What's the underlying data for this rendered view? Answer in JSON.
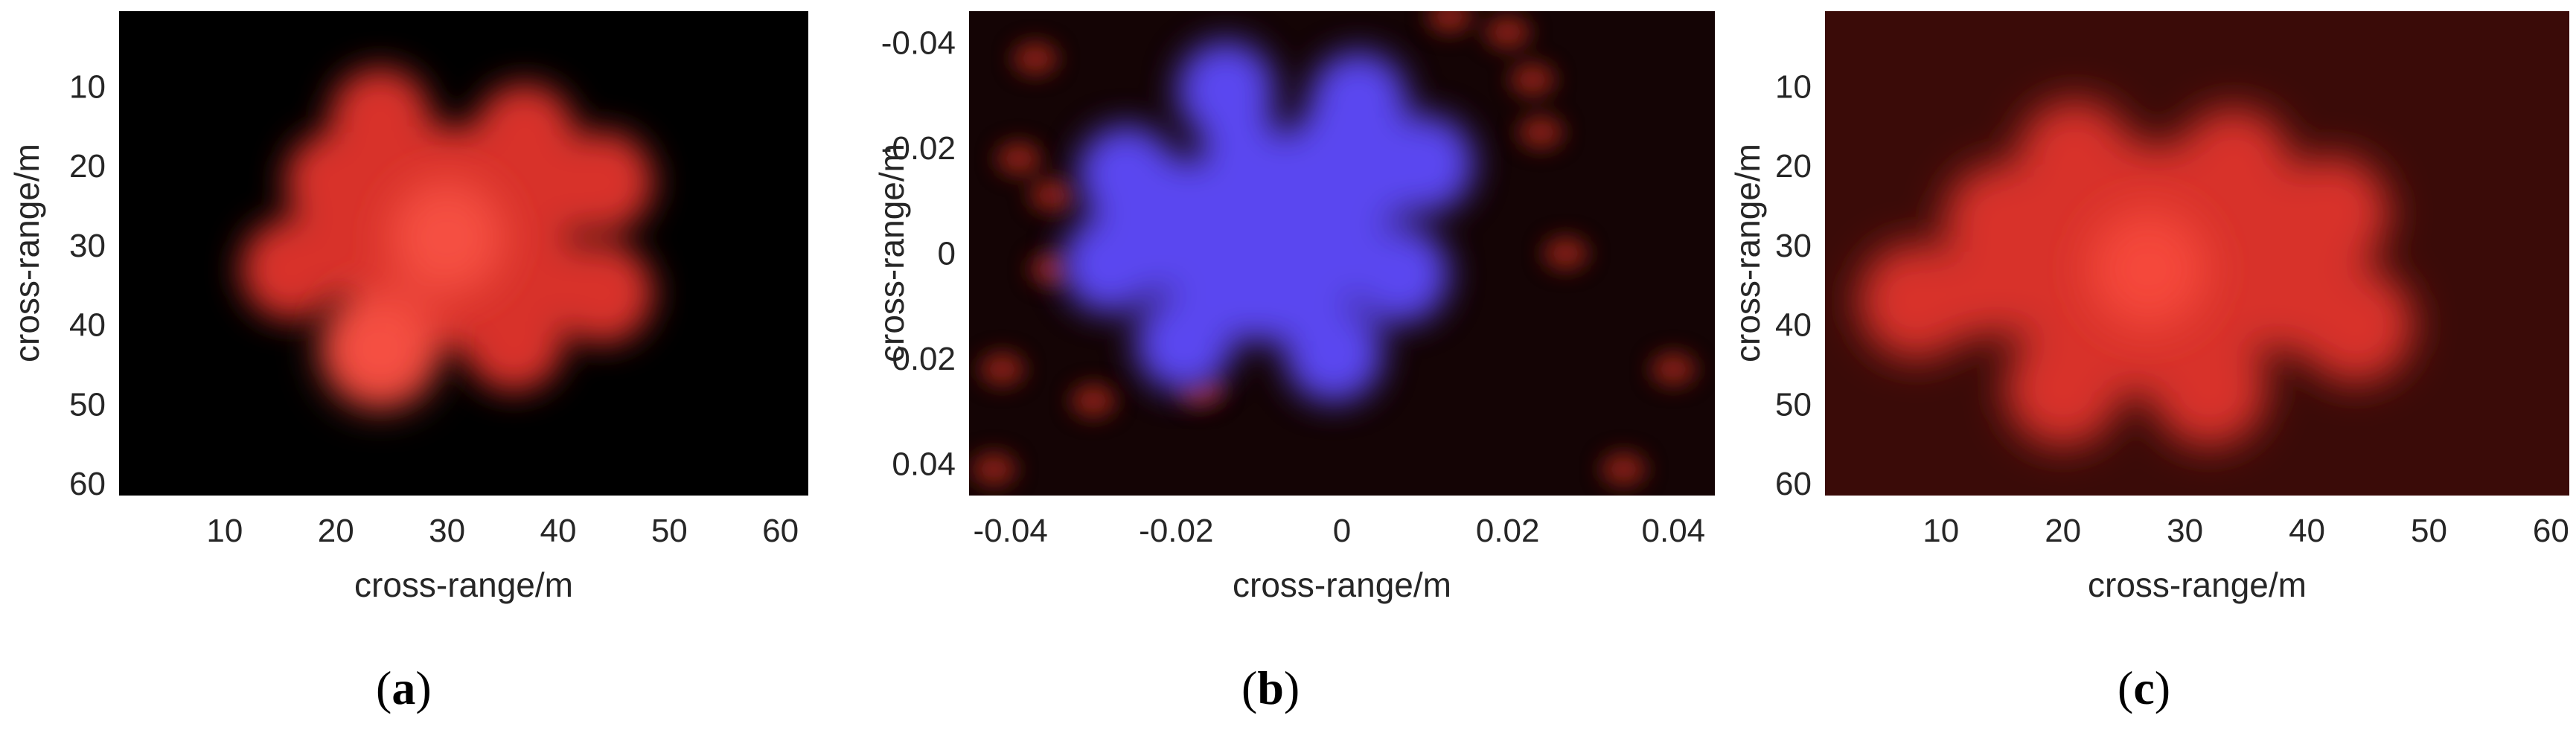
{
  "chart_data": [
    {
      "type": "heatmap",
      "caption_letter": "a",
      "xlabel": "cross-range/m",
      "ylabel": "cross-range/m",
      "xlim": [
        0.5,
        62.5
      ],
      "ylim": [
        0.5,
        61.5
      ],
      "y_reversed": true,
      "xticks": [
        10,
        20,
        30,
        40,
        50,
        60
      ],
      "yticks": [
        10,
        20,
        30,
        40,
        50,
        60
      ],
      "background_color": "#000000",
      "blob_color": "#d8302a",
      "glow_color": "#ff5a4a",
      "target": {
        "shape": "eight-lobed star",
        "center": [
          30,
          29
        ],
        "lobes": [
          [
            24,
            14
          ],
          [
            37,
            16
          ],
          [
            20,
            22
          ],
          [
            44,
            22
          ],
          [
            16,
            33
          ],
          [
            44,
            36
          ],
          [
            24,
            43
          ],
          [
            36,
            42
          ]
        ],
        "bright_spots": [
          [
            30,
            29
          ],
          [
            24,
            43
          ]
        ]
      }
    },
    {
      "type": "heatmap",
      "caption_letter": "b",
      "xlabel": "cross-range/m",
      "ylabel": "cross-range/m",
      "xlim": [
        -0.045,
        0.045
      ],
      "ylim": [
        -0.046,
        0.046
      ],
      "y_reversed": true,
      "xticks": [
        -0.04,
        -0.02,
        0,
        0.02,
        0.04
      ],
      "yticks": [
        -0.04,
        -0.02,
        0,
        0.02,
        0.04
      ],
      "xtick_labels": [
        "-0.04",
        "-0.02",
        "0",
        "0.02",
        "0.04"
      ],
      "ytick_labels": [
        "-0.04",
        "-0.02",
        "0",
        "0.02",
        "0.04"
      ],
      "background_color": "#140405",
      "blob_color": "#5a46f0",
      "glow_color": "#7a66ff",
      "clutter_color": "#9a2418",
      "target": {
        "shape": "eight-lobed star",
        "center": [
          -0.009,
          -0.003
        ],
        "lobes": [
          [
            -0.014,
            -0.031
          ],
          [
            0.002,
            -0.029
          ],
          [
            -0.026,
            -0.015
          ],
          [
            0.01,
            -0.017
          ],
          [
            -0.028,
            0.002
          ],
          [
            0.007,
            0.004
          ],
          [
            -0.019,
            0.017
          ],
          [
            -0.001,
            0.019
          ]
        ],
        "clutter": [
          [
            -0.037,
            -0.037
          ],
          [
            -0.039,
            -0.018
          ],
          [
            -0.035,
            -0.011
          ],
          [
            -0.035,
            0.003
          ],
          [
            0.013,
            -0.045
          ],
          [
            0.023,
            -0.033
          ],
          [
            0.024,
            -0.023
          ],
          [
            0.027,
            0.0
          ],
          [
            0.02,
            -0.042
          ],
          [
            -0.041,
            0.022
          ],
          [
            -0.042,
            0.041
          ],
          [
            0.04,
            0.022
          ],
          [
            0.034,
            0.041
          ],
          [
            -0.03,
            0.028
          ],
          [
            -0.017,
            0.026
          ]
        ]
      }
    },
    {
      "type": "heatmap",
      "caption_letter": "c",
      "xlabel": "cross-range/m",
      "ylabel": "cross-range/m",
      "xlim": [
        0.5,
        61.5
      ],
      "ylim": [
        0.5,
        61.5
      ],
      "y_reversed": true,
      "xticks": [
        10,
        20,
        30,
        40,
        50,
        60
      ],
      "yticks": [
        10,
        20,
        30,
        40,
        50,
        60
      ],
      "background_color": "#3a0b08",
      "blob_color": "#d8302a",
      "glow_color": "#ff5040",
      "target": {
        "shape": "eight-lobed star",
        "center": [
          27,
          33
        ],
        "lobes": [
          [
            21,
            19
          ],
          [
            34,
            20
          ],
          [
            15,
            27
          ],
          [
            42,
            26
          ],
          [
            8,
            37
          ],
          [
            44,
            40
          ],
          [
            20,
            48
          ],
          [
            32,
            48
          ]
        ],
        "bright_spots": [
          [
            27,
            33
          ]
        ]
      }
    }
  ]
}
